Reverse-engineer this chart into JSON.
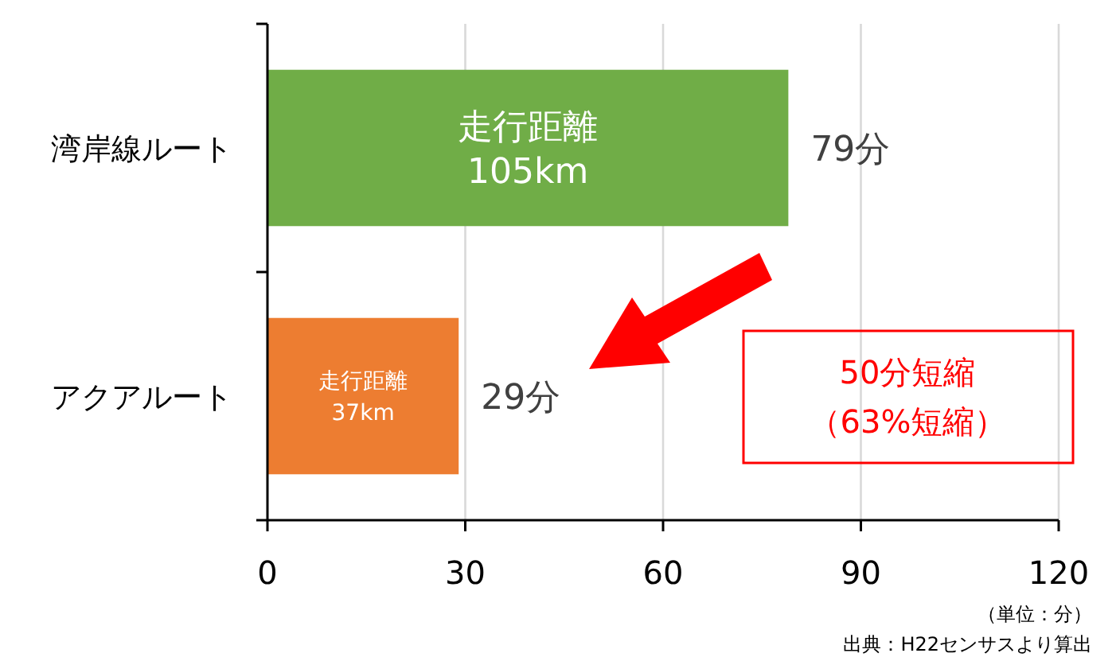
{
  "chart_data": {
    "type": "bar",
    "orientation": "horizontal",
    "categories": [
      "湾岸線ルート",
      "アクアルート"
    ],
    "values": [
      79,
      29
    ],
    "colors": [
      "#70ad47",
      "#ed7d31"
    ],
    "value_labels": [
      "79分",
      "29分"
    ],
    "xlim": [
      0,
      120
    ],
    "xticks": [
      0,
      30,
      60,
      90,
      120
    ],
    "grid": "x",
    "annotations": [
      "走行距離",
      "105km",
      "走行距離",
      "37km",
      "50分短縮",
      "（63%短縮）",
      "（単位：分）",
      "出典：H22センサスより算出"
    ]
  }
}
